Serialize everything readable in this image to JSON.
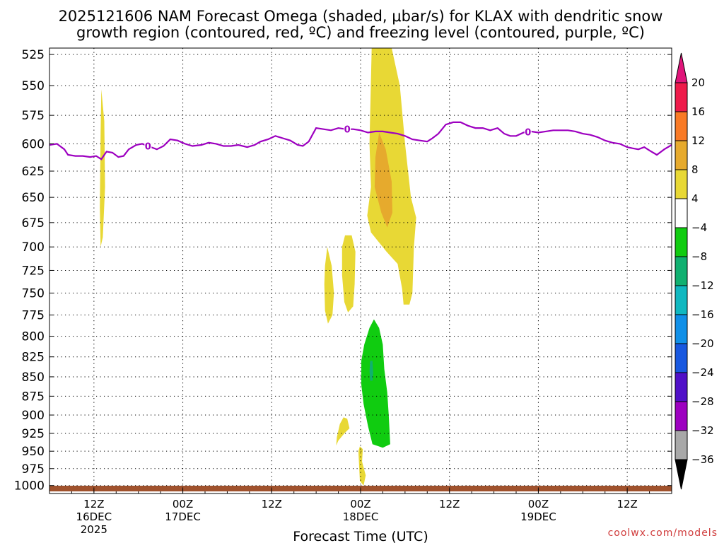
{
  "title": {
    "line1": "2025121606 NAM Forecast Omega (shaded, μbar/s) for KLAX with dendritic snow",
    "line2": "growth region (contoured, red, ºC) and freezing level (contoured, purple, ºC)"
  },
  "credit": "coolwx.com/models",
  "chart_data": {
    "type": "heatmap",
    "title": "2025121606 NAM Forecast Omega (shaded, μbar/s) for KLAX with dendritic snow growth region (contoured, red, ºC) and freezing level (contoured, purple, ºC)",
    "xlabel": "Forecast Time (UTC)",
    "ylabel": "",
    "x_range_hours": [
      6,
      90
    ],
    "y_range_hpa": [
      1012,
      520
    ],
    "y_scale": "log-pressure",
    "grid": true,
    "y_ticks": [
      525,
      550,
      575,
      600,
      625,
      650,
      675,
      700,
      725,
      750,
      775,
      800,
      825,
      850,
      875,
      900,
      925,
      950,
      975,
      1000
    ],
    "x_ticks": [
      {
        "hour": 12,
        "label": "12Z",
        "sub1": "16DEC",
        "sub2": "2025"
      },
      {
        "hour": 24,
        "label": "00Z",
        "sub1": "17DEC",
        "sub2": ""
      },
      {
        "hour": 36,
        "label": "12Z",
        "sub1": "",
        "sub2": ""
      },
      {
        "hour": 48,
        "label": "00Z",
        "sub1": "18DEC",
        "sub2": ""
      },
      {
        "hour": 60,
        "label": "12Z",
        "sub1": "",
        "sub2": ""
      },
      {
        "hour": 72,
        "label": "00Z",
        "sub1": "19DEC",
        "sub2": ""
      },
      {
        "hour": 84,
        "label": "12Z",
        "sub1": "",
        "sub2": ""
      }
    ],
    "colorbar": {
      "labels": [
        "20",
        "16",
        "12",
        "8",
        "4",
        "−4",
        "−8",
        "−12",
        "−16",
        "−20",
        "−24",
        "−28",
        "−32",
        "−36"
      ],
      "colors": [
        "#ee1a4a",
        "#f97a25",
        "#e6aa2d",
        "#e8d835",
        "#ffffff",
        "#10cc10",
        "#10b070",
        "#10b8c0",
        "#1090e8",
        "#1858e0",
        "#5010c8",
        "#9d00c0",
        "#a8a8a8"
      ],
      "top_arrow": "#e0157a",
      "bottom_arrow": "#000000"
    },
    "shaded_regions": [
      {
        "name": "omega-4-8-hr13",
        "color": "#e8d835",
        "points": [
          [
            13.0,
            553
          ],
          [
            13.4,
            580
          ],
          [
            13.5,
            640
          ],
          [
            13.2,
            690
          ],
          [
            12.9,
            700
          ],
          [
            12.8,
            660
          ],
          [
            12.9,
            590
          ]
        ]
      },
      {
        "name": "omega-4-8-hr46-upper",
        "color": "#e8d835",
        "points": [
          [
            49.5,
            520
          ],
          [
            52.2,
            520
          ],
          [
            53.3,
            550
          ],
          [
            54.0,
            600
          ],
          [
            54.8,
            650
          ],
          [
            55.5,
            670
          ],
          [
            55.2,
            700
          ],
          [
            55.0,
            750
          ],
          [
            54.6,
            763
          ],
          [
            53.8,
            763
          ],
          [
            53.6,
            745
          ],
          [
            53.0,
            718
          ],
          [
            51.5,
            705
          ],
          [
            49.4,
            685
          ],
          [
            48.9,
            668
          ],
          [
            49.4,
            640
          ],
          [
            49.2,
            600
          ]
        ]
      },
      {
        "name": "omega-8-12-hr50",
        "color": "#e6aa2d",
        "points": [
          [
            50.5,
            590
          ],
          [
            51.4,
            605
          ],
          [
            52.2,
            635
          ],
          [
            52.3,
            665
          ],
          [
            51.6,
            680
          ],
          [
            50.8,
            665
          ],
          [
            49.9,
            640
          ],
          [
            50.0,
            612
          ]
        ]
      },
      {
        "name": "omega-4-8-hr46-mid",
        "color": "#e8d835",
        "points": [
          [
            45.9,
            688
          ],
          [
            46.8,
            688
          ],
          [
            47.3,
            705
          ],
          [
            47.2,
            740
          ],
          [
            47.0,
            765
          ],
          [
            46.3,
            772
          ],
          [
            45.8,
            760
          ],
          [
            45.5,
            730
          ],
          [
            45.5,
            700
          ]
        ]
      },
      {
        "name": "omega-4-8-hr43",
        "color": "#e8d835",
        "points": [
          [
            43.5,
            700
          ],
          [
            44.1,
            720
          ],
          [
            44.4,
            750
          ],
          [
            44.2,
            775
          ],
          [
            43.6,
            785
          ],
          [
            43.2,
            770
          ],
          [
            43.1,
            740
          ],
          [
            43.2,
            720
          ]
        ]
      },
      {
        "name": "omega-neg4-neg8-hr49",
        "color": "#10cc10",
        "points": [
          [
            49.8,
            780
          ],
          [
            50.5,
            790
          ],
          [
            51.0,
            810
          ],
          [
            51.2,
            840
          ],
          [
            51.6,
            870
          ],
          [
            51.8,
            900
          ],
          [
            52.0,
            940
          ],
          [
            51.0,
            945
          ],
          [
            49.6,
            940
          ],
          [
            49.0,
            915
          ],
          [
            48.4,
            885
          ],
          [
            48.1,
            860
          ],
          [
            48.1,
            830
          ],
          [
            48.5,
            810
          ],
          [
            49.2,
            790
          ]
        ]
      },
      {
        "name": "omega-neg8-neg12-hr49",
        "color": "#10b070",
        "points": [
          [
            49.3,
            830
          ],
          [
            49.6,
            830
          ],
          [
            49.7,
            845
          ],
          [
            49.6,
            855
          ],
          [
            49.3,
            855
          ],
          [
            49.2,
            842
          ]
        ]
      },
      {
        "name": "omega-4-8-hr45-low",
        "color": "#e8d835",
        "points": [
          [
            45.7,
            903
          ],
          [
            46.2,
            905
          ],
          [
            46.5,
            918
          ],
          [
            45.8,
            925
          ],
          [
            45.0,
            935
          ],
          [
            44.7,
            942
          ],
          [
            44.8,
            930
          ],
          [
            45.2,
            912
          ]
        ]
      },
      {
        "name": "omega-4-8-hr48-low",
        "color": "#e8d835",
        "points": [
          [
            47.9,
            943
          ],
          [
            48.3,
            947
          ],
          [
            48.2,
            965
          ],
          [
            48.7,
            985
          ],
          [
            48.4,
            1000
          ],
          [
            47.9,
            993
          ],
          [
            47.8,
            970
          ],
          [
            47.7,
            950
          ]
        ]
      }
    ],
    "freezing_level": {
      "label": "0",
      "color": "#9d00c0",
      "points": [
        [
          6,
          601
        ],
        [
          7,
          600
        ],
        [
          8,
          605
        ],
        [
          8.5,
          610
        ],
        [
          9.5,
          611
        ],
        [
          10.5,
          611
        ],
        [
          11.5,
          612
        ],
        [
          12.3,
          611
        ],
        [
          13.0,
          614
        ],
        [
          13.7,
          607
        ],
        [
          14.5,
          608
        ],
        [
          15.3,
          612
        ],
        [
          16.0,
          611
        ],
        [
          16.7,
          605
        ],
        [
          17.7,
          601
        ],
        [
          18.5,
          600
        ],
        [
          19.7,
          603
        ],
        [
          20.5,
          605
        ],
        [
          21.4,
          602
        ],
        [
          22.3,
          596
        ],
        [
          23.3,
          597
        ],
        [
          24.3,
          600
        ],
        [
          25.3,
          602
        ],
        [
          26.5,
          601
        ],
        [
          27.5,
          599
        ],
        [
          28.5,
          600
        ],
        [
          29.5,
          602
        ],
        [
          30.5,
          602
        ],
        [
          31.5,
          601
        ],
        [
          32.7,
          603
        ],
        [
          33.7,
          601
        ],
        [
          34.5,
          598
        ],
        [
          35.5,
          596
        ],
        [
          36.5,
          593
        ],
        [
          37.5,
          595
        ],
        [
          38.5,
          597
        ],
        [
          39.5,
          601
        ],
        [
          40.2,
          602
        ],
        [
          41.0,
          598
        ],
        [
          42.0,
          586
        ],
        [
          43.0,
          587
        ],
        [
          44.0,
          588
        ],
        [
          45.0,
          586
        ],
        [
          46.0,
          587
        ],
        [
          47.0,
          587
        ],
        [
          48.0,
          588
        ],
        [
          49.0,
          590
        ],
        [
          50.0,
          589
        ],
        [
          51.0,
          589
        ],
        [
          52.0,
          590
        ],
        [
          53.0,
          591
        ],
        [
          54.0,
          593
        ],
        [
          55.0,
          596
        ],
        [
          56.0,
          597
        ],
        [
          57.0,
          598
        ],
        [
          57.7,
          595
        ],
        [
          58.5,
          591
        ],
        [
          59.5,
          583
        ],
        [
          60.5,
          581
        ],
        [
          61.5,
          581
        ],
        [
          62.5,
          584
        ],
        [
          63.5,
          586
        ],
        [
          64.5,
          586
        ],
        [
          65.5,
          588
        ],
        [
          66.5,
          586
        ],
        [
          67.4,
          591
        ],
        [
          68.2,
          593
        ],
        [
          69.0,
          593
        ],
        [
          70.0,
          590
        ],
        [
          71.0,
          589
        ],
        [
          72.0,
          590
        ],
        [
          73.0,
          589
        ],
        [
          74.0,
          588
        ],
        [
          75.0,
          588
        ],
        [
          76.0,
          588
        ],
        [
          77.0,
          589
        ],
        [
          78.0,
          591
        ],
        [
          79.0,
          592
        ],
        [
          80.0,
          594
        ],
        [
          81.0,
          597
        ],
        [
          82.0,
          599
        ],
        [
          83.0,
          600
        ],
        [
          84.0,
          603
        ],
        [
          84.7,
          604
        ],
        [
          85.5,
          605
        ],
        [
          86.3,
          603
        ],
        [
          87.0,
          606
        ],
        [
          88.0,
          610
        ],
        [
          89.0,
          605
        ],
        [
          90.0,
          601
        ]
      ],
      "label_hours": [
        19.3,
        46.2,
        70.6
      ]
    }
  }
}
